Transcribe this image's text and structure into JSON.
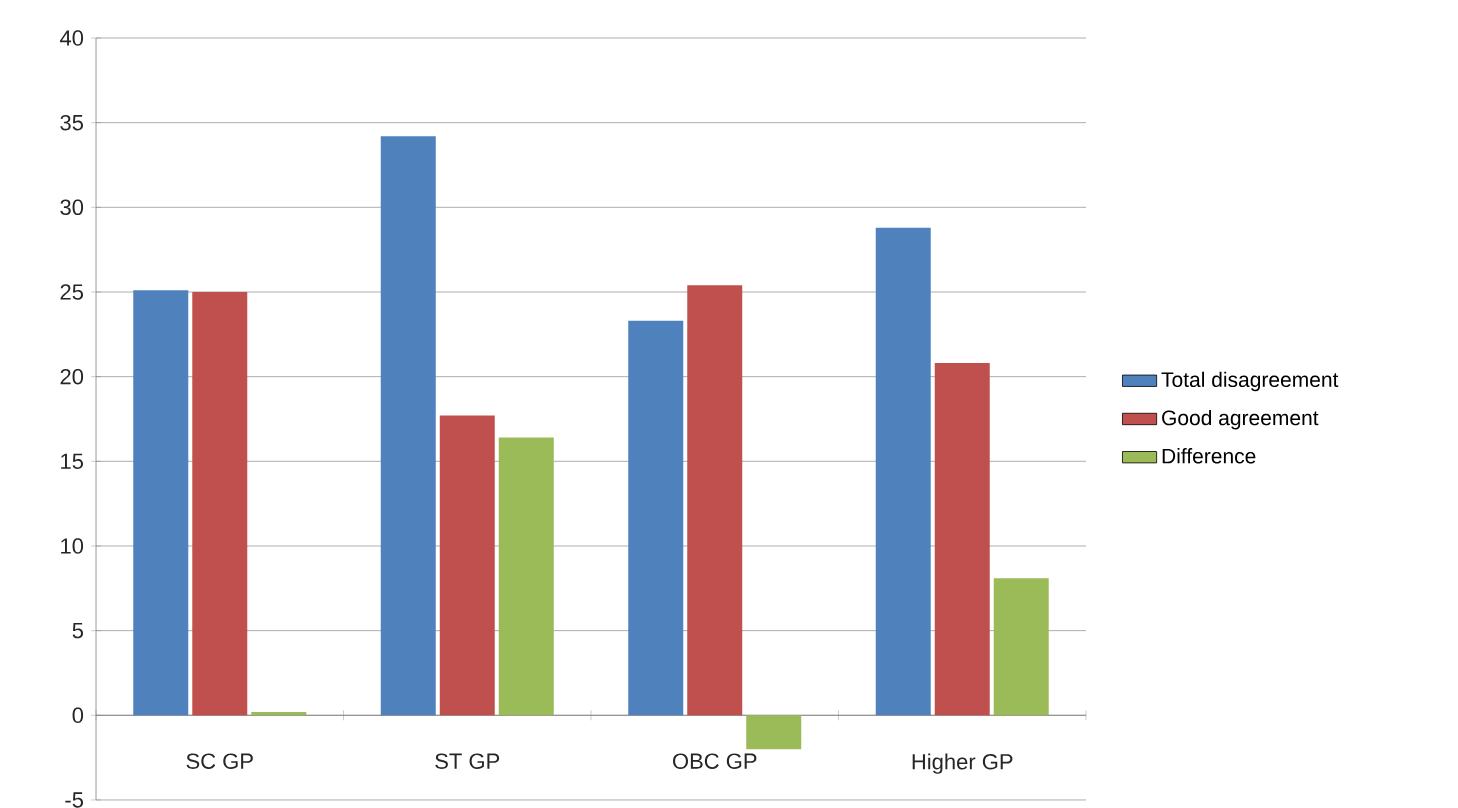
{
  "chart_data": {
    "type": "bar",
    "categories": [
      "SC GP",
      "ST GP",
      "OBC GP",
      "Higher GP"
    ],
    "series": [
      {
        "name": "Total disagreement",
        "color": "#4f81bd",
        "values": [
          25.1,
          34.2,
          23.3,
          28.8
        ]
      },
      {
        "name": "Good agreement",
        "color": "#c0504d",
        "values": [
          25.0,
          17.7,
          25.4,
          20.8
        ]
      },
      {
        "name": "Difference",
        "color": "#9bbb59",
        "values": [
          0.2,
          16.4,
          -2.0,
          8.1
        ]
      }
    ],
    "ylim": [
      -5,
      40
    ],
    "yticks": [
      -5,
      0,
      5,
      10,
      15,
      20,
      25,
      30,
      35,
      40
    ],
    "grid": "y",
    "legend": "right"
  }
}
